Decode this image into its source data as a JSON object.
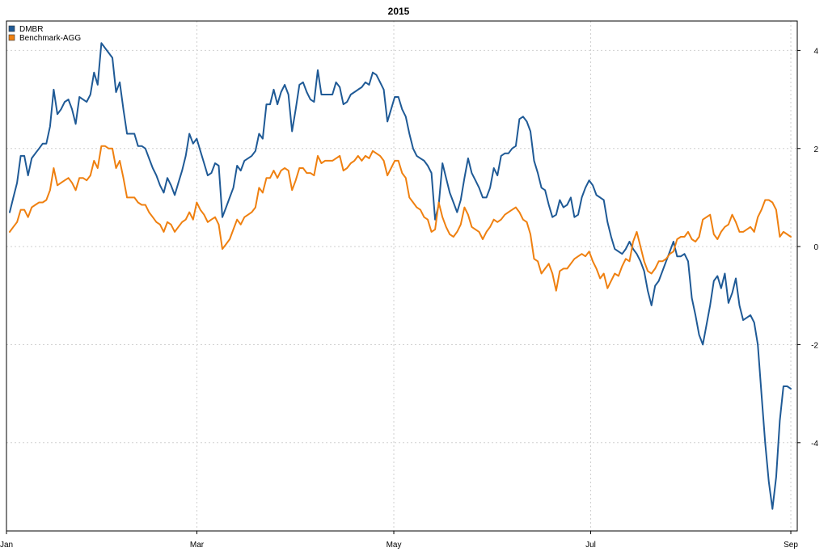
{
  "chart_data": {
    "type": "line",
    "title": "2015",
    "xlabel": "",
    "ylabel": "",
    "x_start": "2015-01-02",
    "x_end": "2015-09-01",
    "xlim": [
      "2015-01-01",
      "2015-09-03"
    ],
    "ylim": [
      -5.8,
      4.6
    ],
    "x_ticks": [
      {
        "label": "Jan",
        "date": "2015-01-01"
      },
      {
        "label": "Mar",
        "date": "2015-03-01"
      },
      {
        "label": "May",
        "date": "2015-05-01"
      },
      {
        "label": "Jul",
        "date": "2015-07-01"
      },
      {
        "label": "Sep",
        "date": "2015-09-01"
      }
    ],
    "y_ticks": [
      4,
      2,
      0,
      -2,
      -4
    ],
    "y_axis_side": "right",
    "grid": true,
    "legend_position": "top-left",
    "series": [
      {
        "name": "DMBR",
        "color": "#1f5a96",
        "values": [
          0.7,
          1.0,
          1.3,
          1.85,
          1.85,
          1.45,
          1.8,
          1.9,
          2.0,
          2.1,
          2.1,
          2.45,
          3.2,
          2.7,
          2.8,
          2.95,
          3.0,
          2.8,
          2.5,
          3.05,
          3.0,
          2.95,
          3.1,
          3.55,
          3.3,
          4.15,
          4.05,
          3.95,
          3.85,
          3.15,
          3.35,
          2.8,
          2.3,
          2.3,
          2.3,
          2.05,
          2.05,
          2.0,
          1.8,
          1.6,
          1.45,
          1.25,
          1.1,
          1.4,
          1.25,
          1.05,
          1.3,
          1.55,
          1.85,
          2.3,
          2.1,
          2.2,
          1.95,
          1.7,
          1.45,
          1.5,
          1.7,
          1.65,
          0.6,
          0.8,
          1.0,
          1.2,
          1.65,
          1.55,
          1.75,
          1.8,
          1.85,
          1.95,
          2.3,
          2.2,
          2.9,
          2.9,
          3.2,
          2.9,
          3.15,
          3.3,
          3.1,
          2.35,
          2.8,
          3.3,
          3.35,
          3.15,
          3.0,
          2.95,
          3.6,
          3.1,
          3.1,
          3.1,
          3.1,
          3.35,
          3.25,
          2.9,
          2.95,
          3.1,
          3.15,
          3.2,
          3.25,
          3.35,
          3.3,
          3.55,
          3.5,
          3.35,
          3.2,
          2.55,
          2.8,
          3.05,
          3.05,
          2.8,
          2.65,
          2.3,
          2.0,
          1.85,
          1.8,
          1.75,
          1.65,
          1.5,
          0.55,
          0.85,
          1.7,
          1.4,
          1.1,
          0.9,
          0.7,
          0.95,
          1.4,
          1.8,
          1.5,
          1.35,
          1.2,
          1.0,
          1.0,
          1.2,
          1.6,
          1.45,
          1.85,
          1.9,
          1.9,
          2.0,
          2.05,
          2.6,
          2.65,
          2.55,
          2.35,
          1.75,
          1.5,
          1.2,
          1.15,
          0.85,
          0.6,
          0.65,
          0.95,
          0.8,
          0.85,
          1.0,
          0.6,
          0.65,
          1.0,
          1.2,
          1.35,
          1.25,
          1.05,
          1.0,
          0.95,
          0.5,
          0.2,
          -0.05,
          -0.1,
          -0.15,
          -0.05,
          0.1,
          -0.05,
          -0.15,
          -0.3,
          -0.5,
          -0.9,
          -1.2,
          -0.8,
          -0.7,
          -0.5,
          -0.3,
          -0.1,
          0.1,
          -0.2,
          -0.2,
          -0.15,
          -0.3,
          -1.05,
          -1.4,
          -1.8,
          -2.0,
          -1.6,
          -1.2,
          -0.7,
          -0.6,
          -0.85,
          -0.55,
          -1.15,
          -0.95,
          -0.65,
          -1.2,
          -1.5,
          -1.45,
          -1.4,
          -1.55,
          -2.0,
          -3.0,
          -4.0,
          -4.8,
          -5.35,
          -4.7,
          -3.55,
          -2.85,
          -2.85,
          -2.9
        ]
      },
      {
        "name": "Benchmark-AGG",
        "color": "#ef8010",
        "values": [
          0.3,
          0.4,
          0.5,
          0.75,
          0.75,
          0.6,
          0.8,
          0.85,
          0.9,
          0.9,
          0.95,
          1.15,
          1.6,
          1.25,
          1.3,
          1.35,
          1.4,
          1.3,
          1.15,
          1.4,
          1.4,
          1.35,
          1.45,
          1.75,
          1.6,
          2.05,
          2.05,
          2.0,
          2.0,
          1.6,
          1.75,
          1.4,
          1.0,
          1.0,
          1.0,
          0.9,
          0.85,
          0.85,
          0.7,
          0.6,
          0.5,
          0.45,
          0.3,
          0.5,
          0.45,
          0.3,
          0.4,
          0.5,
          0.55,
          0.7,
          0.55,
          0.9,
          0.75,
          0.65,
          0.5,
          0.55,
          0.6,
          0.45,
          -0.05,
          0.05,
          0.15,
          0.35,
          0.55,
          0.45,
          0.6,
          0.65,
          0.7,
          0.8,
          1.2,
          1.1,
          1.4,
          1.4,
          1.55,
          1.4,
          1.55,
          1.6,
          1.55,
          1.15,
          1.35,
          1.6,
          1.6,
          1.5,
          1.5,
          1.45,
          1.85,
          1.7,
          1.75,
          1.75,
          1.75,
          1.8,
          1.85,
          1.55,
          1.6,
          1.7,
          1.75,
          1.85,
          1.75,
          1.85,
          1.8,
          1.95,
          1.9,
          1.85,
          1.75,
          1.45,
          1.6,
          1.75,
          1.75,
          1.5,
          1.4,
          1.0,
          0.9,
          0.8,
          0.75,
          0.6,
          0.55,
          0.3,
          0.35,
          0.9,
          0.6,
          0.4,
          0.25,
          0.2,
          0.3,
          0.45,
          0.8,
          0.65,
          0.4,
          0.35,
          0.3,
          0.15,
          0.3,
          0.4,
          0.55,
          0.5,
          0.55,
          0.65,
          0.7,
          0.75,
          0.8,
          0.7,
          0.55,
          0.5,
          0.25,
          -0.25,
          -0.3,
          -0.55,
          -0.45,
          -0.35,
          -0.55,
          -0.9,
          -0.5,
          -0.45,
          -0.45,
          -0.35,
          -0.25,
          -0.2,
          -0.15,
          -0.2,
          -0.1,
          -0.3,
          -0.45,
          -0.65,
          -0.55,
          -0.85,
          -0.7,
          -0.55,
          -0.6,
          -0.4,
          -0.25,
          -0.3,
          0.1,
          0.3,
          0.0,
          -0.3,
          -0.5,
          -0.55,
          -0.45,
          -0.3,
          -0.3,
          -0.25,
          -0.15,
          -0.1,
          0.15,
          0.2,
          0.2,
          0.3,
          0.15,
          0.1,
          0.2,
          0.55,
          0.6,
          0.65,
          0.25,
          0.15,
          0.3,
          0.4,
          0.45,
          0.65,
          0.5,
          0.3,
          0.3,
          0.35,
          0.4,
          0.3,
          0.6,
          0.75,
          0.95,
          0.95,
          0.9,
          0.75,
          0.2,
          0.3,
          0.25,
          0.2
        ]
      }
    ]
  }
}
